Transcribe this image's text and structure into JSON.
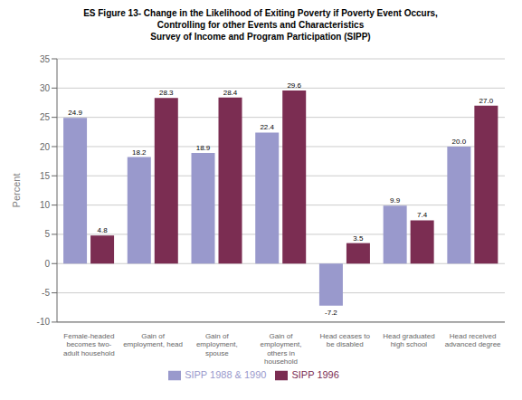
{
  "chart_data": {
    "type": "bar",
    "title": "ES Figure 13- Change in the Likelihood of Exiting Poverty if Poverty Event Occurs,\nControlling for other Events and Characteristics\nSurvey of Income and Program Participation (SIPP)",
    "categories": [
      "Female-headed\nbecomes two-\nadult household",
      "Gain of\nemployment, head",
      "Gain of\nemployment,\nspouse",
      "Gain of\nemployment,\nothers in\nhousehold",
      "Head ceases to\nbe disabled",
      "Head graduated\nhigh school",
      "Head received\nadvanced degree"
    ],
    "series": [
      {
        "name": "SIPP 1988 & 1990",
        "color": "#9999cc",
        "values": [
          24.9,
          18.2,
          18.9,
          22.4,
          -7.2,
          9.9,
          20.0
        ],
        "value_labels": [
          "24.9",
          "18.2",
          "18.9",
          "22.4",
          "-7.2",
          "9.9",
          "20.0"
        ]
      },
      {
        "name": "SIPP 1996",
        "color": "#7b2d52",
        "values": [
          4.8,
          28.3,
          28.4,
          29.6,
          3.5,
          7.4,
          27.0
        ],
        "value_labels": [
          "4.8",
          "28.3",
          "28.4",
          "29.6",
          "3.5",
          "7.4",
          "27.0"
        ]
      }
    ],
    "ylabel": "Percent",
    "ylim": [
      -10,
      35
    ],
    "yticks": [
      -10,
      -5,
      0,
      5,
      10,
      15,
      20,
      25,
      30,
      35
    ],
    "grid": true,
    "legend": "bottom",
    "data_labels": true
  }
}
